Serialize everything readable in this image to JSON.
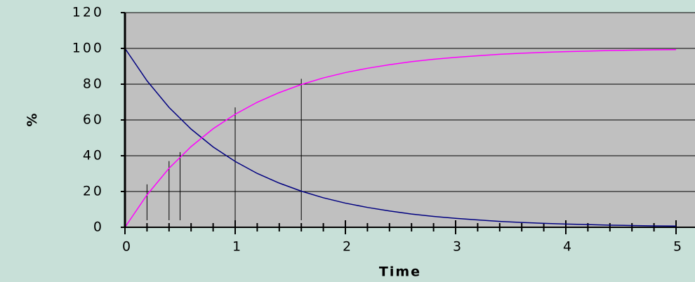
{
  "chart_data": {
    "type": "line",
    "x_label": "Time",
    "y_label": "%",
    "x": [
      0,
      0.2,
      0.4,
      0.6,
      0.8,
      1,
      1.2,
      1.4,
      1.6,
      1.8,
      2,
      2.2,
      2.4,
      2.6,
      2.8,
      3,
      3.2,
      3.4,
      3.6,
      3.8,
      4,
      4.2,
      4.4,
      4.6,
      4.8,
      5
    ],
    "series": [
      {
        "color": "#000080",
        "values": [
          100,
          81.9,
          67.0,
          54.9,
          44.9,
          36.8,
          30.1,
          24.7,
          20.2,
          16.5,
          13.5,
          11.1,
          9.1,
          7.4,
          6.1,
          5.0,
          4.1,
          3.3,
          2.7,
          2.2,
          1.8,
          1.5,
          1.2,
          1.0,
          0.8,
          0.7
        ]
      },
      {
        "color": "#ff00ff",
        "values": [
          0,
          18.1,
          33.0,
          45.1,
          55.1,
          63.2,
          69.9,
          75.3,
          79.8,
          83.5,
          86.5,
          88.9,
          90.9,
          92.6,
          93.9,
          95.0,
          95.9,
          96.7,
          97.3,
          97.8,
          98.2,
          98.5,
          98.8,
          99.0,
          99.2,
          99.3
        ]
      }
    ],
    "markers": {
      "x": [
        0.2,
        0.4,
        0.5,
        1,
        1.6
      ],
      "top": [
        24,
        37,
        42,
        67,
        83
      ]
    },
    "xlim": [
      0,
      5
    ],
    "xticks": [
      0,
      1,
      2,
      3,
      4,
      5
    ],
    "x_minor_step": 0.2,
    "ylim": [
      0,
      120
    ],
    "yticks": [
      0,
      20,
      40,
      60,
      80,
      100,
      120
    ],
    "grid": true,
    "plot_color": "#c0c0c0"
  }
}
